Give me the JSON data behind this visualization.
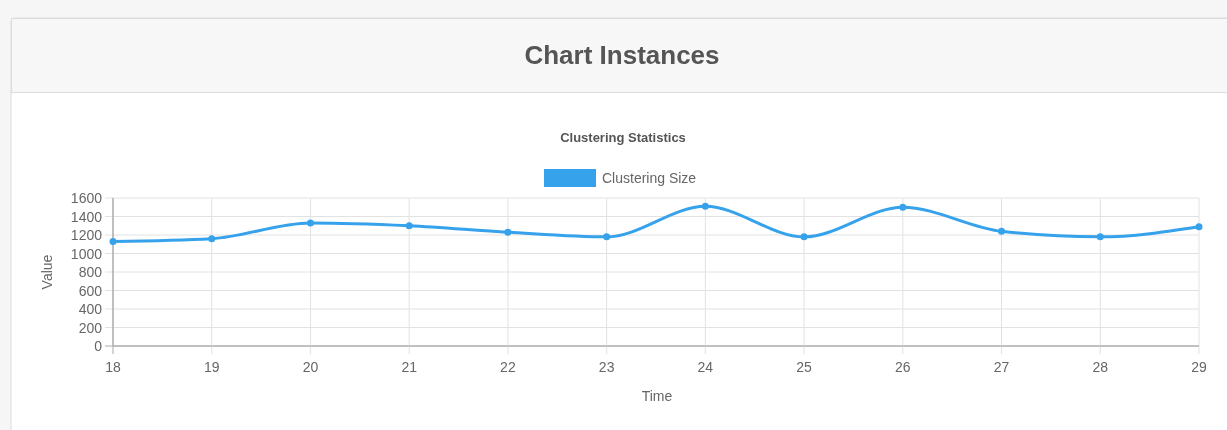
{
  "chart_data": {
    "type": "line",
    "title": "Chart Instances",
    "subtitle": "Clustering Statistics",
    "xlabel": "Time",
    "ylabel": "Value",
    "x": [
      18,
      19,
      20,
      21,
      22,
      23,
      24,
      25,
      26,
      27,
      28,
      29
    ],
    "series": [
      {
        "name": "Clustering Size",
        "color": "#36a2eb",
        "values": [
          1130,
          1160,
          1330,
          1300,
          1230,
          1180,
          1510,
          1180,
          1500,
          1240,
          1180,
          1290
        ]
      }
    ],
    "xlim": [
      18,
      29
    ],
    "xticks": [
      18,
      19,
      20,
      21,
      22,
      23,
      24,
      25,
      26,
      27,
      28,
      29
    ],
    "ylim": [
      0,
      1600
    ],
    "yticks": [
      0,
      200,
      400,
      600,
      800,
      1000,
      1200,
      1400,
      1600
    ],
    "grid": true,
    "legend": "top",
    "marker": "circle",
    "line_style": "solid"
  }
}
